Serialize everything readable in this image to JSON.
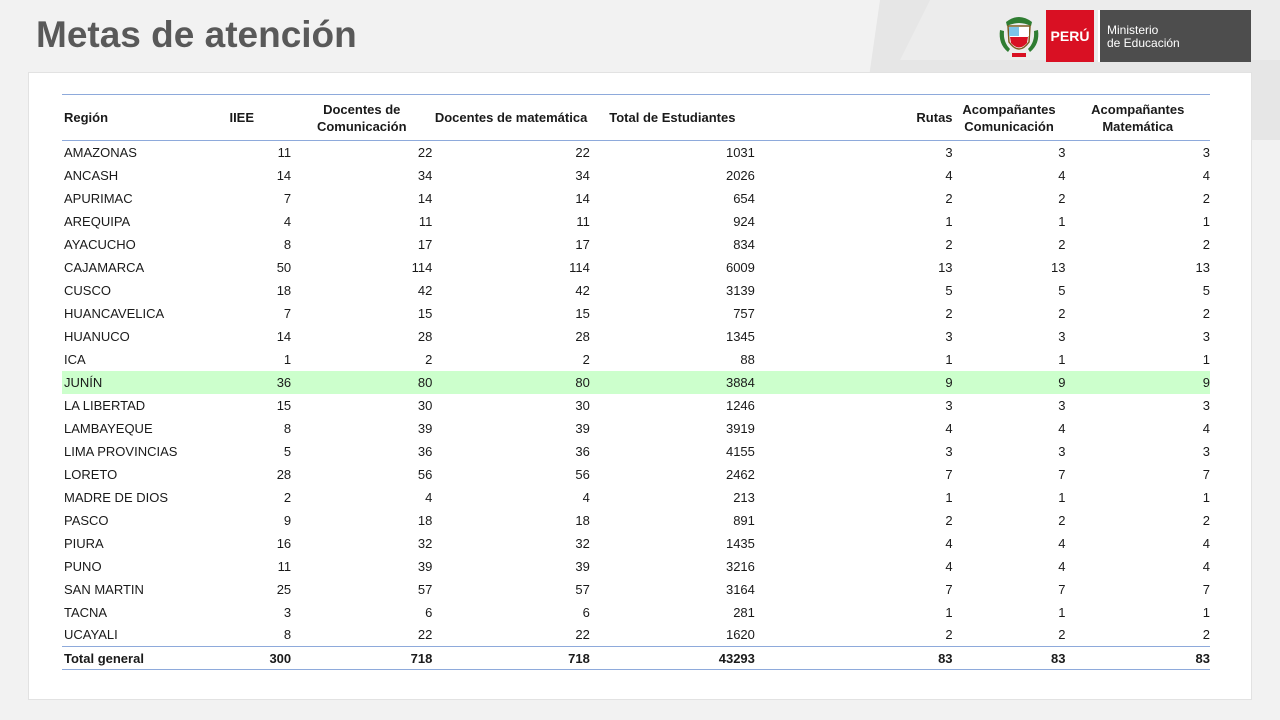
{
  "title": "Metas de atención",
  "logo": {
    "country": "PERÚ",
    "ministry_line1": "Ministerio",
    "ministry_line2": "de Educación",
    "colors": {
      "red": "#d91023",
      "gray": "#4d4d4d"
    }
  },
  "table": {
    "headers": {
      "region": "Región",
      "iiee": "IIEE",
      "doc_com": "Docentes de Comunicación",
      "doc_mat": "Docentes de matemática",
      "total_est": "Total de Estudiantes",
      "rutas": "Rutas",
      "acomp_com": "Acompañantes Comunicación",
      "acomp_mat": "Acompañantes Matemática"
    },
    "rows": [
      {
        "region": "AMAZONAS",
        "iiee": "11",
        "doc_com": "22",
        "doc_mat": "22",
        "total_est": "1031",
        "rutas": "3",
        "acomp_com": "3",
        "acomp_mat": "3"
      },
      {
        "region": "ANCASH",
        "iiee": "14",
        "doc_com": "34",
        "doc_mat": "34",
        "total_est": "2026",
        "rutas": "4",
        "acomp_com": "4",
        "acomp_mat": "4"
      },
      {
        "region": "APURIMAC",
        "iiee": "7",
        "doc_com": "14",
        "doc_mat": "14",
        "total_est": "654",
        "rutas": "2",
        "acomp_com": "2",
        "acomp_mat": "2"
      },
      {
        "region": "AREQUIPA",
        "iiee": "4",
        "doc_com": "11",
        "doc_mat": "11",
        "total_est": "924",
        "rutas": "1",
        "acomp_com": "1",
        "acomp_mat": "1"
      },
      {
        "region": "AYACUCHO",
        "iiee": "8",
        "doc_com": "17",
        "doc_mat": "17",
        "total_est": "834",
        "rutas": "2",
        "acomp_com": "2",
        "acomp_mat": "2"
      },
      {
        "region": "CAJAMARCA",
        "iiee": "50",
        "doc_com": "114",
        "doc_mat": "114",
        "total_est": "6009",
        "rutas": "13",
        "acomp_com": "13",
        "acomp_mat": "13"
      },
      {
        "region": "CUSCO",
        "iiee": "18",
        "doc_com": "42",
        "doc_mat": "42",
        "total_est": "3139",
        "rutas": "5",
        "acomp_com": "5",
        "acomp_mat": "5"
      },
      {
        "region": "HUANCAVELICA",
        "iiee": "7",
        "doc_com": "15",
        "doc_mat": "15",
        "total_est": "757",
        "rutas": "2",
        "acomp_com": "2",
        "acomp_mat": "2"
      },
      {
        "region": "HUANUCO",
        "iiee": "14",
        "doc_com": "28",
        "doc_mat": "28",
        "total_est": "1345",
        "rutas": "3",
        "acomp_com": "3",
        "acomp_mat": "3"
      },
      {
        "region": "ICA",
        "iiee": "1",
        "doc_com": "2",
        "doc_mat": "2",
        "total_est": "88",
        "rutas": "1",
        "acomp_com": "1",
        "acomp_mat": "1"
      },
      {
        "region": "JUNÍN",
        "iiee": "36",
        "doc_com": "80",
        "doc_mat": "80",
        "total_est": "3884",
        "rutas": "9",
        "acomp_com": "9",
        "acomp_mat": "9",
        "highlight": true
      },
      {
        "region": "LA LIBERTAD",
        "iiee": "15",
        "doc_com": "30",
        "doc_mat": "30",
        "total_est": "1246",
        "rutas": "3",
        "acomp_com": "3",
        "acomp_mat": "3"
      },
      {
        "region": "LAMBAYEQUE",
        "iiee": "8",
        "doc_com": "39",
        "doc_mat": "39",
        "total_est": "3919",
        "rutas": "4",
        "acomp_com": "4",
        "acomp_mat": "4"
      },
      {
        "region": "LIMA PROVINCIAS",
        "iiee": "5",
        "doc_com": "36",
        "doc_mat": "36",
        "total_est": "4155",
        "rutas": "3",
        "acomp_com": "3",
        "acomp_mat": "3"
      },
      {
        "region": "LORETO",
        "iiee": "28",
        "doc_com": "56",
        "doc_mat": "56",
        "total_est": "2462",
        "rutas": "7",
        "acomp_com": "7",
        "acomp_mat": "7"
      },
      {
        "region": "MADRE DE DIOS",
        "iiee": "2",
        "doc_com": "4",
        "doc_mat": "4",
        "total_est": "213",
        "rutas": "1",
        "acomp_com": "1",
        "acomp_mat": "1"
      },
      {
        "region": "PASCO",
        "iiee": "9",
        "doc_com": "18",
        "doc_mat": "18",
        "total_est": "891",
        "rutas": "2",
        "acomp_com": "2",
        "acomp_mat": "2"
      },
      {
        "region": "PIURA",
        "iiee": "16",
        "doc_com": "32",
        "doc_mat": "32",
        "total_est": "1435",
        "rutas": "4",
        "acomp_com": "4",
        "acomp_mat": "4"
      },
      {
        "region": "PUNO",
        "iiee": "11",
        "doc_com": "39",
        "doc_mat": "39",
        "total_est": "3216",
        "rutas": "4",
        "acomp_com": "4",
        "acomp_mat": "4"
      },
      {
        "region": "SAN MARTIN",
        "iiee": "25",
        "doc_com": "57",
        "doc_mat": "57",
        "total_est": "3164",
        "rutas": "7",
        "acomp_com": "7",
        "acomp_mat": "7"
      },
      {
        "region": "TACNA",
        "iiee": "3",
        "doc_com": "6",
        "doc_mat": "6",
        "total_est": "281",
        "rutas": "1",
        "acomp_com": "1",
        "acomp_mat": "1"
      },
      {
        "region": "UCAYALI",
        "iiee": "8",
        "doc_com": "22",
        "doc_mat": "22",
        "total_est": "1620",
        "rutas": "2",
        "acomp_com": "2",
        "acomp_mat": "2"
      }
    ],
    "total": {
      "region": "Total general",
      "iiee": "300",
      "doc_com": "718",
      "doc_mat": "718",
      "total_est": "43293",
      "rutas": "83",
      "acomp_com": "83",
      "acomp_mat": "83"
    },
    "colors": {
      "rule": "#8eaadb",
      "highlight": "#ccffcc"
    }
  }
}
